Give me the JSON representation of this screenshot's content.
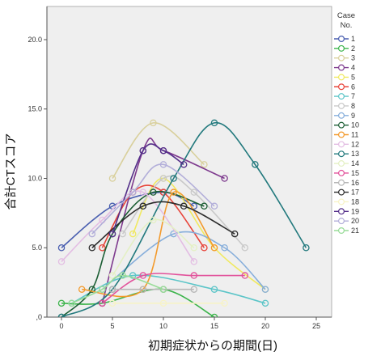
{
  "chart_data": {
    "type": "line",
    "xlabel": "初期症状からの期間(日)",
    "ylabel": "合計CTスコア",
    "xlim": [
      -1.43,
      26.51
    ],
    "ylim": [
      0,
      22.39
    ],
    "x_ticks": [
      0,
      5,
      10,
      15,
      20,
      25
    ],
    "x_tick_labels": [
      "0",
      "5",
      "10",
      "15",
      "20",
      "25"
    ],
    "y_ticks": [
      0,
      5,
      10,
      15,
      20
    ],
    "y_tick_labels": [
      ",0",
      "5.0",
      "10.0",
      "15.0",
      "20.0"
    ],
    "grid": false,
    "background": "#efefef",
    "legend": {
      "title": [
        "Case",
        "No."
      ],
      "placement": "right"
    },
    "series": [
      {
        "name": "1",
        "color": "#4a5fb0",
        "points": [
          [
            0,
            5
          ],
          [
            5,
            8
          ],
          [
            10,
            9
          ],
          [
            13,
            8
          ]
        ]
      },
      {
        "name": "2",
        "color": "#3cb44b",
        "points": [
          [
            0,
            1
          ],
          [
            4,
            1
          ],
          [
            10,
            2
          ],
          [
            15,
            0
          ]
        ]
      },
      {
        "name": "3",
        "color": "#d9d09c",
        "points": [
          [
            5,
            10
          ],
          [
            9,
            14
          ],
          [
            14,
            11
          ]
        ]
      },
      {
        "name": "4",
        "color": "#7e3a8e",
        "points": [
          [
            4,
            1
          ],
          [
            8,
            12
          ],
          [
            10,
            12
          ],
          [
            16,
            10
          ]
        ]
      },
      {
        "name": "5",
        "color": "#f0e960",
        "points": [
          [
            7,
            6
          ],
          [
            10,
            10
          ],
          [
            15,
            5
          ],
          [
            20,
            2
          ]
        ]
      },
      {
        "name": "6",
        "color": "#e8443a",
        "points": [
          [
            4,
            5
          ],
          [
            7,
            9
          ],
          [
            10,
            9
          ],
          [
            14,
            5
          ]
        ]
      },
      {
        "name": "7",
        "color": "#5cc5c8",
        "points": [
          [
            1,
            1
          ],
          [
            7,
            3
          ],
          [
            15,
            2
          ],
          [
            20,
            1
          ]
        ]
      },
      {
        "name": "8",
        "color": "#c9c9c9",
        "points": [
          [
            6,
            6
          ],
          [
            10,
            10
          ],
          [
            13,
            9
          ],
          [
            18,
            5
          ]
        ]
      },
      {
        "name": "9",
        "color": "#86aedb",
        "points": [
          [
            4,
            2
          ],
          [
            11,
            6
          ],
          [
            16,
            5
          ],
          [
            20,
            2
          ]
        ]
      },
      {
        "name": "10",
        "color": "#1c5e34",
        "points": [
          [
            0,
            0
          ],
          [
            3,
            2
          ],
          [
            5,
            6
          ],
          [
            9,
            9
          ],
          [
            14,
            8
          ]
        ]
      },
      {
        "name": "11",
        "color": "#f39a2c",
        "points": [
          [
            2,
            2
          ],
          [
            8,
            2
          ],
          [
            11,
            9
          ],
          [
            15,
            5
          ]
        ]
      },
      {
        "name": "12",
        "color": "#e3bde3",
        "points": [
          [
            0,
            4
          ],
          [
            4,
            7
          ],
          [
            8,
            9
          ],
          [
            13,
            4
          ]
        ]
      },
      {
        "name": "13",
        "color": "#22797d",
        "points": [
          [
            0,
            0
          ],
          [
            5,
            2
          ],
          [
            11,
            10
          ],
          [
            15,
            14
          ],
          [
            19,
            11
          ],
          [
            24,
            5
          ]
        ]
      },
      {
        "name": "14",
        "color": "#e4f0c4",
        "points": [
          [
            5,
            3
          ],
          [
            9,
            7
          ],
          [
            13,
            5
          ]
        ]
      },
      {
        "name": "15",
        "color": "#e2529b",
        "points": [
          [
            4,
            1
          ],
          [
            8,
            3
          ],
          [
            13,
            3
          ],
          [
            18,
            3
          ]
        ]
      },
      {
        "name": "16",
        "color": "#b7b7b7",
        "points": [
          [
            5,
            2
          ],
          [
            8,
            2
          ],
          [
            10,
            2
          ],
          [
            13,
            2
          ]
        ]
      },
      {
        "name": "17",
        "color": "#2b2b2b",
        "points": [
          [
            3,
            5
          ],
          [
            8,
            8
          ],
          [
            12,
            8
          ],
          [
            17,
            6
          ]
        ]
      },
      {
        "name": "18",
        "color": "#f7f3c6",
        "points": [
          [
            5,
            1
          ],
          [
            10,
            1
          ],
          [
            16,
            1
          ]
        ]
      },
      {
        "name": "19",
        "color": "#55308a",
        "points": [
          [
            5,
            6
          ],
          [
            8,
            12
          ],
          [
            10,
            12
          ],
          [
            12,
            11
          ]
        ]
      },
      {
        "name": "20",
        "color": "#b2aed9",
        "points": [
          [
            3,
            6
          ],
          [
            7,
            9
          ],
          [
            10,
            11
          ],
          [
            15,
            8
          ]
        ]
      },
      {
        "name": "21",
        "color": "#98dc98",
        "points": [
          [
            1,
            1
          ],
          [
            4,
            2
          ],
          [
            6,
            3
          ],
          [
            10,
            2
          ]
        ]
      }
    ]
  }
}
